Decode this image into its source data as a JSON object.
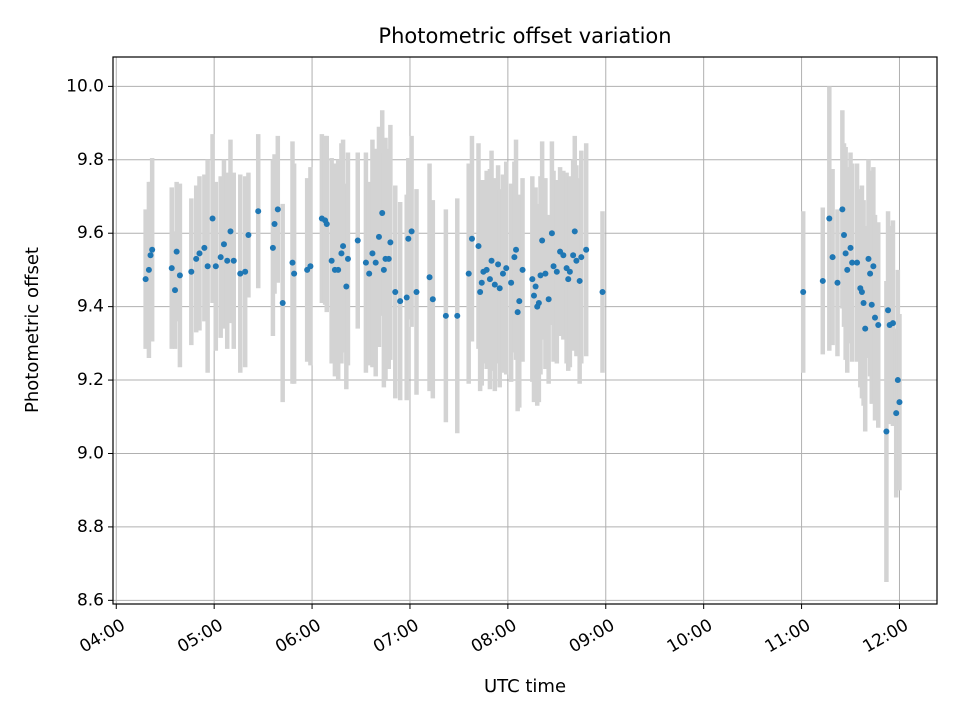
{
  "chart_data": {
    "type": "scatter",
    "title": "Photometric offset variation",
    "xlabel": "UTC time",
    "ylabel": "Photometric offset",
    "xlim": [
      "03:58",
      "12:23"
    ],
    "ylim": [
      8.59,
      10.08
    ],
    "xticks": [
      "04:00",
      "05:00",
      "06:00",
      "07:00",
      "08:00",
      "09:00",
      "10:00",
      "11:00",
      "12:00"
    ],
    "yticks": [
      "8.6",
      "8.8",
      "9.0",
      "9.2",
      "9.4",
      "9.6",
      "9.8",
      "10.0"
    ],
    "grid": true,
    "colors": {
      "points": "#1f77b4",
      "errorbars": "#d3d3d3",
      "grid": "#b0b0b0"
    },
    "series": [
      {
        "marker": "point",
        "errorbars": true,
        "points": [
          {
            "x": "04:18",
            "y": 9.475,
            "err": 0.19
          },
          {
            "x": "04:20",
            "y": 9.5,
            "err": 0.24
          },
          {
            "x": "04:21",
            "y": 9.54,
            "err": 0.2
          },
          {
            "x": "04:22",
            "y": 9.555,
            "err": 0.25
          },
          {
            "x": "04:34",
            "y": 9.505,
            "err": 0.22
          },
          {
            "x": "04:36",
            "y": 9.445,
            "err": 0.16
          },
          {
            "x": "04:37",
            "y": 9.55,
            "err": 0.19
          },
          {
            "x": "04:39",
            "y": 9.485,
            "err": 0.25
          },
          {
            "x": "04:46",
            "y": 9.495,
            "err": 0.2
          },
          {
            "x": "04:49",
            "y": 9.53,
            "err": 0.2
          },
          {
            "x": "04:51",
            "y": 9.545,
            "err": 0.21
          },
          {
            "x": "04:54",
            "y": 9.56,
            "err": 0.2
          },
          {
            "x": "04:56",
            "y": 9.51,
            "err": 0.29
          },
          {
            "x": "04:59",
            "y": 9.64,
            "err": 0.23
          },
          {
            "x": "05:01",
            "y": 9.51,
            "err": 0.23
          },
          {
            "x": "05:04",
            "y": 9.535,
            "err": 0.22
          },
          {
            "x": "05:06",
            "y": 9.57,
            "err": 0.23
          },
          {
            "x": "05:08",
            "y": 9.525,
            "err": 0.24
          },
          {
            "x": "05:10",
            "y": 9.605,
            "err": 0.25
          },
          {
            "x": "05:12",
            "y": 9.525,
            "err": 0.24
          },
          {
            "x": "05:16",
            "y": 9.49,
            "err": 0.27
          },
          {
            "x": "05:19",
            "y": 9.495,
            "err": 0.26
          },
          {
            "x": "05:21",
            "y": 9.595,
            "err": 0.17
          },
          {
            "x": "05:27",
            "y": 9.66,
            "err": 0.21
          },
          {
            "x": "05:36",
            "y": 9.56,
            "err": 0.24
          },
          {
            "x": "05:37",
            "y": 9.625,
            "err": 0.19
          },
          {
            "x": "05:39",
            "y": 9.665,
            "err": 0.2
          },
          {
            "x": "05:42",
            "y": 9.41,
            "err": 0.27
          },
          {
            "x": "05:48",
            "y": 9.52,
            "err": 0.33
          },
          {
            "x": "05:49",
            "y": 9.49,
            "err": 0.3
          },
          {
            "x": "05:57",
            "y": 9.5,
            "err": 0.25
          },
          {
            "x": "05:59",
            "y": 9.51,
            "err": 0.27
          },
          {
            "x": "06:06",
            "y": 9.64,
            "err": 0.23
          },
          {
            "x": "06:08",
            "y": 9.635,
            "err": 0.23
          },
          {
            "x": "06:09",
            "y": 9.625,
            "err": 0.24
          },
          {
            "x": "06:12",
            "y": 9.525,
            "err": 0.28
          },
          {
            "x": "06:14",
            "y": 9.5,
            "err": 0.29
          },
          {
            "x": "06:16",
            "y": 9.5,
            "err": 0.3
          },
          {
            "x": "06:18",
            "y": 9.545,
            "err": 0.3
          },
          {
            "x": "06:19",
            "y": 9.565,
            "err": 0.29
          },
          {
            "x": "06:21",
            "y": 9.455,
            "err": 0.28
          },
          {
            "x": "06:22",
            "y": 9.53,
            "err": 0.29
          },
          {
            "x": "06:28",
            "y": 9.58,
            "err": 0.24
          },
          {
            "x": "06:33",
            "y": 9.52,
            "err": 0.3
          },
          {
            "x": "06:35",
            "y": 9.49,
            "err": 0.25
          },
          {
            "x": "06:37",
            "y": 9.545,
            "err": 0.31
          },
          {
            "x": "06:39",
            "y": 9.52,
            "err": 0.31
          },
          {
            "x": "06:41",
            "y": 9.59,
            "err": 0.3
          },
          {
            "x": "06:43",
            "y": 9.655,
            "err": 0.28
          },
          {
            "x": "06:44",
            "y": 9.5,
            "err": 0.32
          },
          {
            "x": "06:45",
            "y": 9.53,
            "err": 0.33
          },
          {
            "x": "06:47",
            "y": 9.53,
            "err": 0.3
          },
          {
            "x": "06:48",
            "y": 9.575,
            "err": 0.32
          },
          {
            "x": "06:51",
            "y": 9.44,
            "err": 0.29
          },
          {
            "x": "06:54",
            "y": 9.415,
            "err": 0.27
          },
          {
            "x": "06:58",
            "y": 9.425,
            "err": 0.28
          },
          {
            "x": "06:59",
            "y": 9.585,
            "err": 0.22
          },
          {
            "x": "07:01",
            "y": 9.605,
            "err": 0.26
          },
          {
            "x": "07:04",
            "y": 9.44,
            "err": 0.28
          },
          {
            "x": "07:12",
            "y": 9.48,
            "err": 0.31
          },
          {
            "x": "07:14",
            "y": 9.42,
            "err": 0.27
          },
          {
            "x": "07:22",
            "y": 9.375,
            "err": 0.29
          },
          {
            "x": "07:29",
            "y": 9.375,
            "err": 0.32
          },
          {
            "x": "07:36",
            "y": 9.49,
            "err": 0.3
          },
          {
            "x": "07:38",
            "y": 9.585,
            "err": 0.28
          },
          {
            "x": "07:42",
            "y": 9.565,
            "err": 0.28
          },
          {
            "x": "07:43",
            "y": 9.44,
            "err": 0.27
          },
          {
            "x": "07:44",
            "y": 9.465,
            "err": 0.28
          },
          {
            "x": "07:45",
            "y": 9.495,
            "err": 0.25
          },
          {
            "x": "07:47",
            "y": 9.5,
            "err": 0.27
          },
          {
            "x": "07:49",
            "y": 9.475,
            "err": 0.3
          },
          {
            "x": "07:50",
            "y": 9.525,
            "err": 0.3
          },
          {
            "x": "07:52",
            "y": 9.46,
            "err": 0.29
          },
          {
            "x": "07:54",
            "y": 9.515,
            "err": 0.27
          },
          {
            "x": "07:55",
            "y": 9.45,
            "err": 0.27
          },
          {
            "x": "07:57",
            "y": 9.49,
            "err": 0.27
          },
          {
            "x": "07:59",
            "y": 9.505,
            "err": 0.29
          },
          {
            "x": "08:02",
            "y": 9.465,
            "err": 0.27
          },
          {
            "x": "08:04",
            "y": 9.535,
            "err": 0.26
          },
          {
            "x": "08:05",
            "y": 9.555,
            "err": 0.3
          },
          {
            "x": "08:06",
            "y": 9.385,
            "err": 0.27
          },
          {
            "x": "08:07",
            "y": 9.415,
            "err": 0.29
          },
          {
            "x": "08:09",
            "y": 9.5,
            "err": 0.25
          },
          {
            "x": "08:15",
            "y": 9.475,
            "err": 0.28
          },
          {
            "x": "08:16",
            "y": 9.43,
            "err": 0.29
          },
          {
            "x": "08:17",
            "y": 9.455,
            "err": 0.27
          },
          {
            "x": "08:18",
            "y": 9.4,
            "err": 0.27
          },
          {
            "x": "08:19",
            "y": 9.41,
            "err": 0.27
          },
          {
            "x": "08:20",
            "y": 9.485,
            "err": 0.27
          },
          {
            "x": "08:21",
            "y": 9.58,
            "err": 0.27
          },
          {
            "x": "08:23",
            "y": 9.49,
            "err": 0.26
          },
          {
            "x": "08:25",
            "y": 9.42,
            "err": 0.23
          },
          {
            "x": "08:27",
            "y": 9.6,
            "err": 0.25
          },
          {
            "x": "08:28",
            "y": 9.51,
            "err": 0.26
          },
          {
            "x": "08:30",
            "y": 9.495,
            "err": 0.25
          },
          {
            "x": "08:32",
            "y": 9.55,
            "err": 0.23
          },
          {
            "x": "08:34",
            "y": 9.54,
            "err": 0.23
          },
          {
            "x": "08:36",
            "y": 9.505,
            "err": 0.26
          },
          {
            "x": "08:37",
            "y": 9.475,
            "err": 0.25
          },
          {
            "x": "08:38",
            "y": 9.495,
            "err": 0.26
          },
          {
            "x": "08:40",
            "y": 9.54,
            "err": 0.26
          },
          {
            "x": "08:41",
            "y": 9.605,
            "err": 0.26
          },
          {
            "x": "08:42",
            "y": 9.525,
            "err": 0.26
          },
          {
            "x": "08:44",
            "y": 9.47,
            "err": 0.28
          },
          {
            "x": "08:45",
            "y": 9.535,
            "err": 0.29
          },
          {
            "x": "08:48",
            "y": 9.555,
            "err": 0.29
          },
          {
            "x": "08:58",
            "y": 9.44,
            "err": 0.22
          },
          {
            "x": "11:01",
            "y": 9.44,
            "err": 0.22
          },
          {
            "x": "11:13",
            "y": 9.47,
            "err": 0.2
          },
          {
            "x": "11:17",
            "y": 9.64,
            "err": 0.36
          },
          {
            "x": "11:19",
            "y": 9.535,
            "err": 0.24
          },
          {
            "x": "11:22",
            "y": 9.465,
            "err": 0.2
          },
          {
            "x": "11:25",
            "y": 9.665,
            "err": 0.27
          },
          {
            "x": "11:26",
            "y": 9.595,
            "err": 0.25
          },
          {
            "x": "11:27",
            "y": 9.545,
            "err": 0.29
          },
          {
            "x": "11:28",
            "y": 9.5,
            "err": 0.28
          },
          {
            "x": "11:30",
            "y": 9.56,
            "err": 0.26
          },
          {
            "x": "11:31",
            "y": 9.52,
            "err": 0.27
          },
          {
            "x": "11:34",
            "y": 9.52,
            "err": 0.27
          },
          {
            "x": "11:36",
            "y": 9.45,
            "err": 0.27
          },
          {
            "x": "11:37",
            "y": 9.44,
            "err": 0.29
          },
          {
            "x": "11:38",
            "y": 9.41,
            "err": 0.28
          },
          {
            "x": "11:39",
            "y": 9.34,
            "err": 0.28
          },
          {
            "x": "11:41",
            "y": 9.53,
            "err": 0.27
          },
          {
            "x": "11:42",
            "y": 9.49,
            "err": 0.28
          },
          {
            "x": "11:43",
            "y": 9.405,
            "err": 0.27
          },
          {
            "x": "11:44",
            "y": 9.51,
            "err": 0.27
          },
          {
            "x": "11:45",
            "y": 9.37,
            "err": 0.28
          },
          {
            "x": "11:47",
            "y": 9.35,
            "err": 0.28
          },
          {
            "x": "11:52",
            "y": 9.06,
            "err": 0.41
          },
          {
            "x": "11:53",
            "y": 9.39,
            "err": 0.27
          },
          {
            "x": "11:54",
            "y": 9.35,
            "err": 0.27
          },
          {
            "x": "11:56",
            "y": 9.355,
            "err": 0.28
          },
          {
            "x": "11:58",
            "y": 9.11,
            "err": 0.23
          },
          {
            "x": "11:59",
            "y": 9.2,
            "err": 0.3
          },
          {
            "x": "12:00",
            "y": 9.14,
            "err": 0.24
          }
        ]
      }
    ]
  }
}
